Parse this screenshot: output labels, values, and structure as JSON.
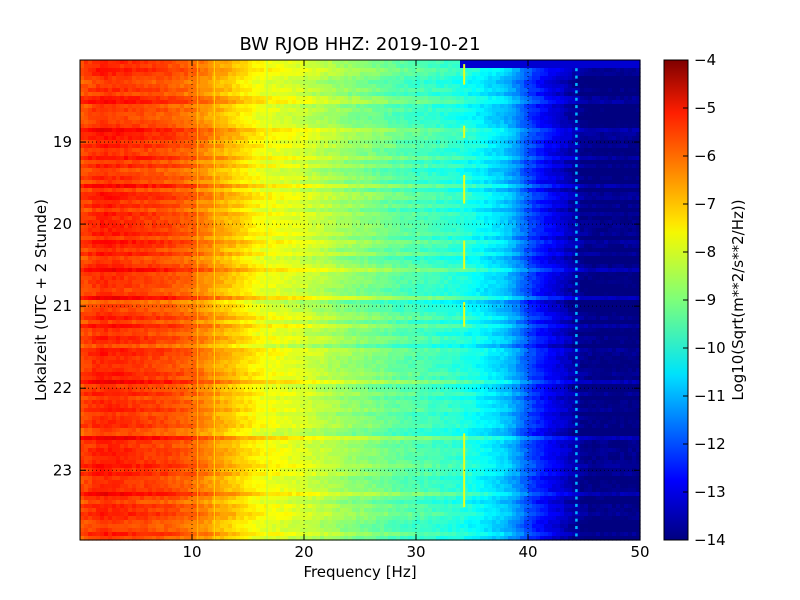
{
  "chart_data": {
    "type": "heatmap",
    "title": "BW RJOB HHZ: 2019-10-21",
    "xlabel": "Frequency [Hz]",
    "ylabel": "Lokalzeit (UTC + 2 Stunde)",
    "xlim": [
      0,
      50
    ],
    "ylim_hours": [
      18.0,
      23.85
    ],
    "y_inverted": true,
    "grid": true,
    "grid_style": "dotted",
    "colormap": "jet",
    "x_ticks": [
      {
        "value": 10,
        "label": "10"
      },
      {
        "value": 20,
        "label": "20"
      },
      {
        "value": 30,
        "label": "30"
      },
      {
        "value": 40,
        "label": "40"
      },
      {
        "value": 50,
        "label": "50"
      }
    ],
    "y_ticks": [
      {
        "value": 19,
        "label": "19"
      },
      {
        "value": 20,
        "label": "20"
      },
      {
        "value": 21,
        "label": "21"
      },
      {
        "value": 22,
        "label": "22"
      },
      {
        "value": 23,
        "label": "23"
      }
    ],
    "colorbar": {
      "label": "Log10(Sqrt(m**2/s**2/Hz))",
      "min": -14,
      "max": -4,
      "ticks": [
        {
          "value": -4,
          "label": "−4"
        },
        {
          "value": -5,
          "label": "−5"
        },
        {
          "value": -6,
          "label": "−6"
        },
        {
          "value": -7,
          "label": "−7"
        },
        {
          "value": -8,
          "label": "−8"
        },
        {
          "value": -9,
          "label": "−9"
        },
        {
          "value": -10,
          "label": "−10"
        },
        {
          "value": -11,
          "label": "−11"
        },
        {
          "value": -12,
          "label": "−12"
        },
        {
          "value": -13,
          "label": "−13"
        },
        {
          "value": -14,
          "label": "−14"
        }
      ]
    },
    "spectrum_profile": {
      "frequency_hz": [
        0,
        2,
        5,
        8,
        10,
        12,
        14,
        16,
        18,
        20,
        22,
        24,
        26,
        28,
        30,
        32,
        34,
        36,
        38,
        39,
        40,
        41,
        42,
        43,
        44,
        45,
        46,
        48,
        50
      ],
      "log10_amplitude": [
        -6.0,
        -5.6,
        -5.8,
        -6.0,
        -6.3,
        -6.8,
        -7.3,
        -7.8,
        -8.0,
        -8.2,
        -8.5,
        -8.8,
        -9.0,
        -9.3,
        -9.5,
        -9.7,
        -9.9,
        -10.3,
        -10.8,
        -11.3,
        -12.0,
        -12.5,
        -12.9,
        -13.2,
        -13.6,
        -13.9,
        -14.0,
        -14.0,
        -14.0
      ]
    },
    "spectral_lines_hz": [
      10.5,
      12.0,
      16.7
    ],
    "glitch_track_hz": 34.3,
    "comb_line_hz": 44.3
  }
}
